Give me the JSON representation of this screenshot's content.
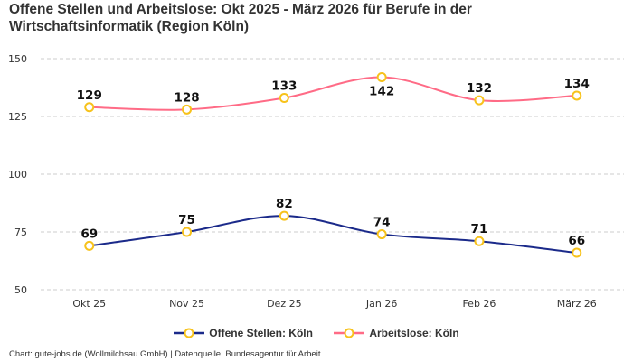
{
  "chart_data": {
    "type": "line",
    "title": "Offene Stellen und Arbeitslose: Okt 2025 - März 2026 für Berufe in der Wirtschaftsinformatik (Region Köln)",
    "categories": [
      "Okt 25",
      "Nov 25",
      "Dez 25",
      "Jan 26",
      "Feb 26",
      "März 26"
    ],
    "series": [
      {
        "name": "Offene Stellen: Köln",
        "values": [
          69,
          75,
          82,
          74,
          71,
          66
        ],
        "color": "#1b2a8a"
      },
      {
        "name": "Arbeitslose: Köln",
        "values": [
          129,
          128,
          133,
          142,
          132,
          134
        ],
        "color": "#ff6b86"
      }
    ],
    "yticks": [
      50,
      75,
      100,
      125,
      150
    ],
    "ylim": [
      50,
      150
    ],
    "grid": true,
    "legend_position": "bottom",
    "marker_color": "#f7c21b",
    "credits": "Chart: gute-jobs.de (Wollmilchsau GmbH) | Datenquelle: Bundesagentur für Arbeit"
  }
}
